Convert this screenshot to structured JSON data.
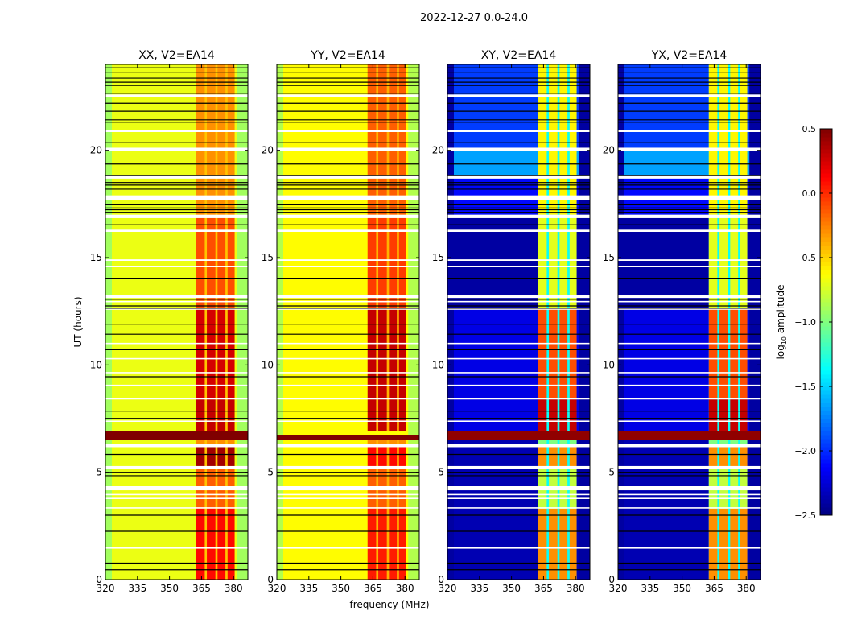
{
  "figure": {
    "suptitle": "2022-12-27 0.0-24.0",
    "xlabel": "frequency (MHz)",
    "ylabel": "UT (hours)"
  },
  "colorbar": {
    "label_prefix": "log",
    "label_sub": "10",
    "label_suffix": " amplitude",
    "range": [
      -2.5,
      0.5
    ],
    "ticks": [
      "0.5",
      "0.0",
      "−0.5",
      "−1.0",
      "−1.5",
      "−2.0",
      "−2.5"
    ],
    "tick_values": [
      0.5,
      0.0,
      -0.5,
      -1.0,
      -1.5,
      -2.0,
      -2.5
    ],
    "colormap": "jet"
  },
  "chart_data": [
    {
      "type": "heatmap",
      "title": "XX, V2=EA14",
      "xlim": [
        320,
        386.7
      ],
      "ylim": [
        0,
        24
      ],
      "xticks": [
        320,
        335,
        350,
        365,
        380
      ],
      "xtick_labels": [
        "320",
        "335",
        "350",
        "365",
        "380"
      ],
      "yticks": [
        0,
        5,
        10,
        15,
        20
      ],
      "ytick_labels": [
        "0",
        "5",
        "10",
        "15",
        "20"
      ],
      "base_segments": [
        [
          0,
          24,
          -0.68
        ]
      ],
      "edge_value": -0.9,
      "rfi_channels": [
        [
          362.5,
          366.5
        ],
        [
          367.5,
          371.5
        ],
        [
          372.5,
          376.2
        ],
        [
          377.2,
          380.5
        ]
      ],
      "rfi_gap_value": -0.45,
      "rfi_segments": [
        [
          0,
          3.3,
          0.1
        ],
        [
          3.3,
          5.2,
          -0.15
        ],
        [
          5.2,
          6.2,
          0.4
        ],
        [
          6.2,
          6.5,
          -0.3
        ],
        [
          6.9,
          8.4,
          0.3
        ],
        [
          8.4,
          12.6,
          0.25
        ],
        [
          12.6,
          17.0,
          -0.1
        ],
        [
          17.0,
          24,
          -0.3
        ]
      ],
      "full_band_segments": [
        [
          6.5,
          6.9,
          0.5
        ]
      ],
      "flagged_rows": [
        [
          22.5,
          22.6
        ],
        [
          20.85,
          20.95
        ],
        [
          19.98,
          20.12
        ],
        [
          18.68,
          18.8
        ],
        [
          17.7,
          17.9
        ],
        [
          16.84,
          17.0
        ],
        [
          16.2,
          16.3
        ],
        [
          14.85,
          14.92
        ],
        [
          14.55,
          14.62
        ],
        [
          13.12,
          13.24
        ],
        [
          12.92,
          12.98
        ],
        [
          12.57,
          12.63
        ],
        [
          10.97,
          11.03
        ],
        [
          10.26,
          10.32
        ],
        [
          9.61,
          9.67
        ],
        [
          9.02,
          9.08
        ],
        [
          8.39,
          8.45
        ],
        [
          7.35,
          7.41
        ],
        [
          6.17,
          6.32
        ],
        [
          5.17,
          5.29
        ],
        [
          4.16,
          4.35
        ],
        [
          3.93,
          3.99
        ],
        [
          3.75,
          3.81
        ],
        [
          3.31,
          3.37
        ],
        [
          1.44,
          1.5
        ]
      ],
      "line_rows": [
        23.84,
        23.64,
        23.36,
        23.17,
        23.02,
        22.66,
        22.19,
        21.82,
        21.42,
        21.31,
        20.37,
        19.36,
        18.82,
        18.5,
        18.38,
        18.19,
        17.46,
        17.31,
        17.23,
        17.11,
        16.53,
        14.04,
        13.06,
        12.75,
        12.64,
        11.9,
        11.43,
        10.71,
        9.45,
        7.85,
        7.51,
        5.83,
        5.0,
        4.84,
        3.0,
        2.25,
        0.77,
        0.46
      ]
    },
    {
      "type": "heatmap",
      "title": "YY, V2=EA14",
      "xlim": [
        320,
        386.7
      ],
      "ylim": [
        0,
        24
      ],
      "xticks": [
        320,
        335,
        350,
        365,
        380
      ],
      "xtick_labels": [
        "320",
        "335",
        "350",
        "365",
        "380"
      ],
      "yticks": [
        0,
        5,
        10,
        15,
        20
      ],
      "ytick_labels": [
        "0",
        "5",
        "10",
        "15",
        "20"
      ],
      "base_segments": [
        [
          0,
          24,
          -0.62
        ]
      ],
      "edge_value": -0.85,
      "rfi_channels": [
        [
          362.5,
          366.5
        ],
        [
          367.5,
          371.5
        ],
        [
          372.5,
          376.2
        ],
        [
          377.2,
          380.5
        ]
      ],
      "rfi_gap_value": -0.4,
      "rfi_segments": [
        [
          0,
          3.3,
          0.05
        ],
        [
          3.3,
          5.2,
          -0.15
        ],
        [
          5.2,
          6.2,
          0.1
        ],
        [
          6.2,
          6.5,
          -0.3
        ],
        [
          6.9,
          8.4,
          0.3
        ],
        [
          8.4,
          12.6,
          0.3
        ],
        [
          12.6,
          17.0,
          -0.05
        ],
        [
          17.0,
          24,
          -0.15
        ]
      ],
      "full_band_segments": [
        [
          6.5,
          6.75,
          0.5
        ]
      ],
      "flagged_rows": [
        [
          22.5,
          22.6
        ],
        [
          20.85,
          20.95
        ],
        [
          19.98,
          20.12
        ],
        [
          18.68,
          18.8
        ],
        [
          17.7,
          17.9
        ],
        [
          16.84,
          17.0
        ],
        [
          16.2,
          16.3
        ],
        [
          14.85,
          14.92
        ],
        [
          14.55,
          14.62
        ],
        [
          13.12,
          13.24
        ],
        [
          12.92,
          12.98
        ],
        [
          12.57,
          12.63
        ],
        [
          10.97,
          11.03
        ],
        [
          10.26,
          10.32
        ],
        [
          9.61,
          9.67
        ],
        [
          9.02,
          9.08
        ],
        [
          8.39,
          8.45
        ],
        [
          7.35,
          7.41
        ],
        [
          6.17,
          6.32
        ],
        [
          5.17,
          5.29
        ],
        [
          4.16,
          4.35
        ],
        [
          3.93,
          3.99
        ],
        [
          3.75,
          3.81
        ],
        [
          3.31,
          3.37
        ],
        [
          1.44,
          1.5
        ]
      ],
      "line_rows": [
        23.84,
        23.64,
        23.36,
        23.17,
        23.02,
        22.66,
        22.19,
        21.82,
        21.42,
        21.31,
        20.37,
        19.36,
        18.82,
        18.5,
        18.38,
        18.19,
        17.46,
        17.31,
        17.23,
        17.11,
        16.53,
        14.04,
        13.06,
        12.75,
        12.64,
        11.9,
        11.43,
        10.71,
        9.45,
        7.85,
        7.51,
        5.83,
        5.0,
        4.84,
        3.0,
        2.25,
        0.77,
        0.46
      ]
    },
    {
      "type": "heatmap",
      "title": "XY, V2=EA14",
      "xlim": [
        320,
        386.7
      ],
      "ylim": [
        0,
        24
      ],
      "xticks": [
        320,
        335,
        350,
        365,
        380
      ],
      "xtick_labels": [
        "320",
        "335",
        "350",
        "365",
        "380"
      ],
      "yticks": [
        0,
        5,
        10,
        15,
        20
      ],
      "ytick_labels": [
        "0",
        "5",
        "10",
        "15",
        "20"
      ],
      "base_segments": [
        [
          0,
          6.5,
          -2.35
        ],
        [
          6.9,
          12.6,
          -2.2
        ],
        [
          12.6,
          17.0,
          -2.4
        ],
        [
          17.0,
          18.8,
          -2.1
        ],
        [
          18.8,
          20.0,
          -1.65
        ],
        [
          20.0,
          24,
          -1.95
        ]
      ],
      "edge_value": -2.4,
      "rfi_channels": [
        [
          362.5,
          366.5
        ],
        [
          367.5,
          371.5
        ],
        [
          372.5,
          376.2
        ],
        [
          377.2,
          380.5
        ]
      ],
      "rfi_gap_value": -1.35,
      "rfi_segments": [
        [
          0,
          3.3,
          -0.3
        ],
        [
          3.3,
          5.2,
          -0.8
        ],
        [
          5.2,
          6.2,
          -0.3
        ],
        [
          6.2,
          6.5,
          -1.0
        ],
        [
          6.9,
          8.4,
          0.3
        ],
        [
          8.4,
          12.6,
          -0.1
        ],
        [
          12.6,
          17.0,
          -0.7
        ],
        [
          17.0,
          24,
          -0.6
        ]
      ],
      "full_band_segments": [
        [
          6.5,
          6.9,
          0.45
        ]
      ],
      "flagged_rows": [
        [
          22.5,
          22.6
        ],
        [
          20.85,
          20.95
        ],
        [
          19.98,
          20.12
        ],
        [
          18.68,
          18.8
        ],
        [
          17.7,
          17.9
        ],
        [
          16.84,
          17.0
        ],
        [
          16.2,
          16.3
        ],
        [
          14.85,
          14.92
        ],
        [
          14.55,
          14.62
        ],
        [
          13.12,
          13.24
        ],
        [
          12.92,
          12.98
        ],
        [
          12.57,
          12.63
        ],
        [
          10.97,
          11.03
        ],
        [
          10.26,
          10.32
        ],
        [
          9.61,
          9.67
        ],
        [
          9.02,
          9.08
        ],
        [
          8.39,
          8.45
        ],
        [
          7.35,
          7.41
        ],
        [
          6.17,
          6.32
        ],
        [
          5.17,
          5.29
        ],
        [
          4.16,
          4.35
        ],
        [
          3.93,
          3.99
        ],
        [
          3.75,
          3.81
        ],
        [
          3.31,
          3.37
        ],
        [
          1.44,
          1.5
        ]
      ],
      "line_rows": [
        23.84,
        23.64,
        23.36,
        23.17,
        23.02,
        22.66,
        22.19,
        21.82,
        21.42,
        21.31,
        20.37,
        19.36,
        18.82,
        18.5,
        18.38,
        18.19,
        17.46,
        17.31,
        17.23,
        17.11,
        16.53,
        14.04,
        13.06,
        12.75,
        12.64,
        11.9,
        11.43,
        10.71,
        9.45,
        7.85,
        7.51,
        5.83,
        5.0,
        4.84,
        3.0,
        2.25,
        0.77,
        0.46
      ]
    },
    {
      "type": "heatmap",
      "title": "YX, V2=EA14",
      "xlim": [
        320,
        386.7
      ],
      "ylim": [
        0,
        24
      ],
      "xticks": [
        320,
        335,
        350,
        365,
        380
      ],
      "xtick_labels": [
        "320",
        "335",
        "350",
        "365",
        "380"
      ],
      "yticks": [
        0,
        5,
        10,
        15,
        20
      ],
      "ytick_labels": [
        "0",
        "5",
        "10",
        "15",
        "20"
      ],
      "base_segments": [
        [
          0,
          6.5,
          -2.35
        ],
        [
          6.9,
          12.6,
          -2.2
        ],
        [
          12.6,
          17.0,
          -2.4
        ],
        [
          17.0,
          18.8,
          -2.1
        ],
        [
          18.8,
          20.0,
          -1.65
        ],
        [
          20.0,
          24,
          -1.95
        ]
      ],
      "edge_value": -2.4,
      "rfi_channels": [
        [
          362.5,
          366.5
        ],
        [
          367.5,
          371.5
        ],
        [
          372.5,
          376.2
        ],
        [
          377.2,
          380.5
        ]
      ],
      "rfi_gap_value": -1.35,
      "rfi_segments": [
        [
          0,
          3.3,
          -0.3
        ],
        [
          3.3,
          5.2,
          -0.8
        ],
        [
          5.2,
          6.2,
          -0.3
        ],
        [
          6.2,
          6.5,
          -1.0
        ],
        [
          6.9,
          8.4,
          0.3
        ],
        [
          8.4,
          12.6,
          -0.1
        ],
        [
          12.6,
          17.0,
          -0.7
        ],
        [
          17.0,
          24,
          -0.6
        ]
      ],
      "full_band_segments": [
        [
          6.5,
          6.9,
          0.45
        ]
      ],
      "flagged_rows": [
        [
          22.5,
          22.6
        ],
        [
          20.85,
          20.95
        ],
        [
          19.98,
          20.12
        ],
        [
          18.68,
          18.8
        ],
        [
          17.7,
          17.9
        ],
        [
          16.84,
          17.0
        ],
        [
          16.2,
          16.3
        ],
        [
          14.85,
          14.92
        ],
        [
          14.55,
          14.62
        ],
        [
          13.12,
          13.24
        ],
        [
          12.92,
          12.98
        ],
        [
          12.57,
          12.63
        ],
        [
          10.97,
          11.03
        ],
        [
          10.26,
          10.32
        ],
        [
          9.61,
          9.67
        ],
        [
          9.02,
          9.08
        ],
        [
          8.39,
          8.45
        ],
        [
          7.35,
          7.41
        ],
        [
          6.17,
          6.32
        ],
        [
          5.17,
          5.29
        ],
        [
          4.16,
          4.35
        ],
        [
          3.93,
          3.99
        ],
        [
          3.75,
          3.81
        ],
        [
          3.31,
          3.37
        ],
        [
          1.44,
          1.5
        ]
      ],
      "line_rows": [
        23.84,
        23.64,
        23.36,
        23.17,
        23.02,
        22.66,
        22.19,
        21.82,
        21.42,
        21.31,
        20.37,
        19.36,
        18.82,
        18.5,
        18.38,
        18.19,
        17.46,
        17.31,
        17.23,
        17.11,
        16.53,
        14.04,
        13.06,
        12.75,
        12.64,
        11.9,
        11.43,
        10.71,
        9.45,
        7.85,
        7.51,
        5.83,
        5.0,
        4.84,
        3.0,
        2.25,
        0.77,
        0.46
      ]
    }
  ]
}
